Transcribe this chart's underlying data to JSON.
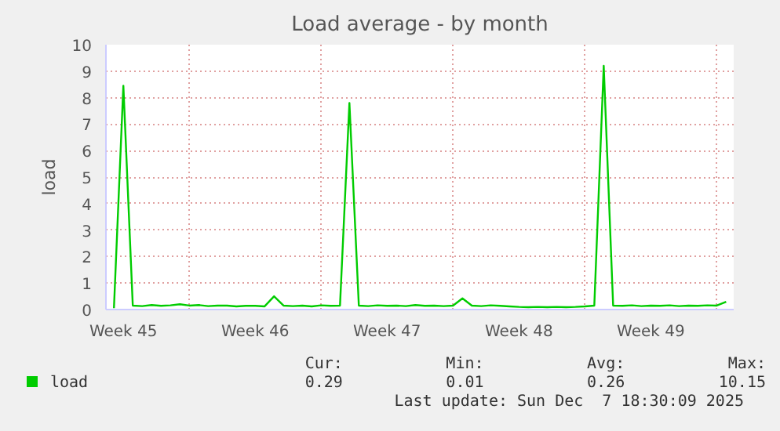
{
  "chart_data": {
    "type": "line",
    "title": "Load average - by month",
    "ylabel": "load",
    "categories": [
      null,
      "Week 45",
      null,
      null,
      null,
      null,
      null,
      null,
      null,
      null,
      null,
      null,
      null,
      null,
      null,
      "Week 46",
      null,
      null,
      null,
      null,
      null,
      null,
      null,
      null,
      null,
      null,
      null,
      null,
      null,
      "Week 47",
      null,
      null,
      null,
      null,
      null,
      null,
      null,
      null,
      null,
      null,
      null,
      null,
      null,
      "Week 48",
      null,
      null,
      null,
      null,
      null,
      null,
      null,
      null,
      null,
      null,
      null,
      null,
      null,
      "Week 49",
      null,
      null,
      null,
      null,
      null,
      null,
      null,
      null
    ],
    "series": [
      {
        "name": "load",
        "color": "#00cc00",
        "values": [
          0.05,
          8.45,
          0.15,
          0.13,
          0.17,
          0.14,
          0.16,
          0.2,
          0.15,
          0.17,
          0.13,
          0.15,
          0.15,
          0.12,
          0.14,
          0.14,
          0.12,
          0.5,
          0.15,
          0.13,
          0.15,
          0.12,
          0.16,
          0.14,
          0.15,
          7.8,
          0.15,
          0.13,
          0.16,
          0.14,
          0.15,
          0.13,
          0.17,
          0.14,
          0.15,
          0.13,
          0.15,
          0.42,
          0.15,
          0.13,
          0.16,
          0.14,
          0.12,
          0.1,
          0.09,
          0.1,
          0.09,
          0.1,
          0.09,
          0.1,
          0.12,
          0.15,
          9.2,
          0.15,
          0.14,
          0.16,
          0.13,
          0.15,
          0.14,
          0.16,
          0.13,
          0.15,
          0.14,
          0.16,
          0.15,
          0.29
        ]
      }
    ],
    "ylim": [
      0,
      10
    ],
    "yticks": [
      0,
      1,
      2,
      3,
      4,
      5,
      6,
      7,
      8,
      9,
      10
    ],
    "grid": true,
    "legend": "bottom",
    "line_style": "solid",
    "annotations": [
      "Cur:",
      "Min:",
      "Avg:",
      "Max:",
      "0.29",
      "0.01",
      "0.26",
      "10.15",
      "Last update: Sun Dec  7 18:30:09 2025"
    ]
  }
}
